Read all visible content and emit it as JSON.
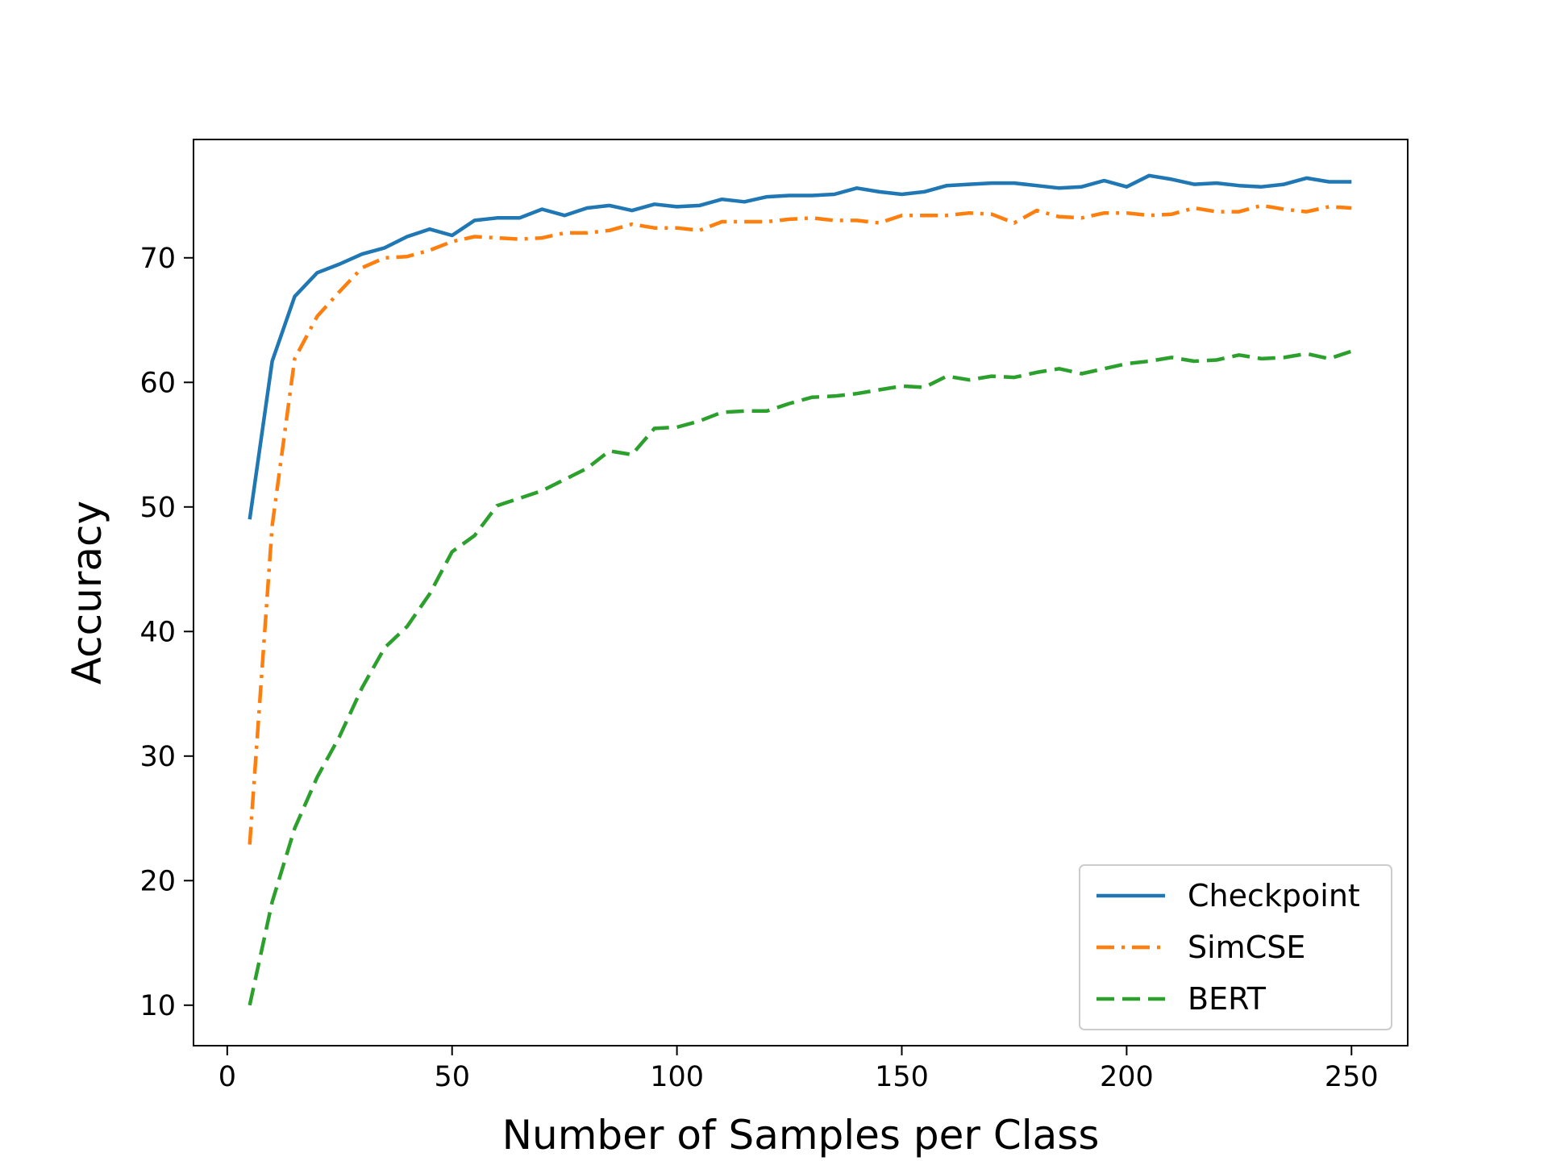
{
  "chart_data": {
    "type": "line",
    "title": "",
    "xlabel": "Number of Samples per Class",
    "ylabel": "Accuracy",
    "xlim": [
      -7.5,
      262.5
    ],
    "ylim": [
      6.75,
      79.5
    ],
    "xticks": [
      0,
      50,
      100,
      150,
      200,
      250
    ],
    "yticks": [
      10,
      20,
      30,
      40,
      50,
      60,
      70
    ],
    "grid": false,
    "legend_position": "lower-right",
    "x": [
      5,
      10,
      15,
      20,
      25,
      30,
      35,
      40,
      45,
      50,
      55,
      60,
      65,
      70,
      75,
      80,
      85,
      90,
      95,
      100,
      105,
      110,
      115,
      120,
      125,
      130,
      135,
      140,
      145,
      150,
      155,
      160,
      165,
      170,
      175,
      180,
      185,
      190,
      195,
      200,
      205,
      210,
      215,
      220,
      225,
      230,
      235,
      240,
      245,
      250
    ],
    "series": [
      {
        "name": "Checkpoint",
        "color": "#1f77b4",
        "dash": "solid",
        "values": [
          49.0,
          61.7,
          66.9,
          68.8,
          69.5,
          70.3,
          70.8,
          71.7,
          72.3,
          71.8,
          73.0,
          73.2,
          73.2,
          73.9,
          73.4,
          74.0,
          74.2,
          73.8,
          74.3,
          74.1,
          74.2,
          74.7,
          74.5,
          74.9,
          75.0,
          75.0,
          75.1,
          75.6,
          75.3,
          75.1,
          75.3,
          75.8,
          75.9,
          76.0,
          76.0,
          75.8,
          75.6,
          75.7,
          76.2,
          75.7,
          76.6,
          76.3,
          75.9,
          76.0,
          75.8,
          75.7,
          75.9,
          76.4,
          76.1,
          76.1
        ]
      },
      {
        "name": "SimCSE",
        "color": "#ff7f0e",
        "dash": "dashdot",
        "values": [
          22.9,
          48.5,
          61.9,
          65.3,
          67.3,
          69.2,
          70.0,
          70.1,
          70.6,
          71.3,
          71.7,
          71.6,
          71.5,
          71.6,
          72.0,
          72.0,
          72.2,
          72.7,
          72.4,
          72.4,
          72.2,
          72.9,
          72.9,
          72.9,
          73.1,
          73.2,
          73.0,
          73.0,
          72.8,
          73.4,
          73.4,
          73.4,
          73.6,
          73.5,
          72.8,
          73.8,
          73.3,
          73.2,
          73.6,
          73.6,
          73.4,
          73.5,
          74.0,
          73.7,
          73.7,
          74.2,
          73.9,
          73.7,
          74.1,
          74.0
        ]
      },
      {
        "name": "BERT",
        "color": "#2ca02c",
        "dash": "dashed",
        "values": [
          10.0,
          18.3,
          24.2,
          28.3,
          31.6,
          35.5,
          38.7,
          40.4,
          43.0,
          46.4,
          47.7,
          50.1,
          50.7,
          51.3,
          52.2,
          53.1,
          54.5,
          54.2,
          56.3,
          56.4,
          56.9,
          57.6,
          57.7,
          57.7,
          58.3,
          58.8,
          58.9,
          59.1,
          59.4,
          59.7,
          59.6,
          60.5,
          60.2,
          60.5,
          60.4,
          60.8,
          61.1,
          60.7,
          61.1,
          61.5,
          61.7,
          62.0,
          61.7,
          61.8,
          62.2,
          61.9,
          62.0,
          62.3,
          61.9,
          62.5
        ]
      }
    ]
  }
}
